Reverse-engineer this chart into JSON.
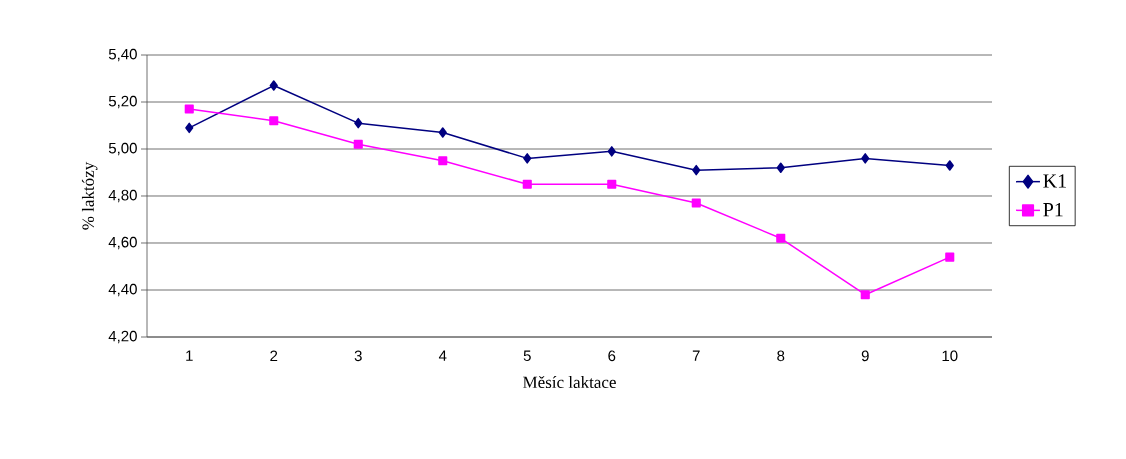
{
  "chart_data": {
    "type": "line",
    "xlabel": "Měsíc laktace",
    "ylabel": "% laktózy",
    "categories": [
      "1",
      "2",
      "3",
      "4",
      "5",
      "6",
      "7",
      "8",
      "9",
      "10"
    ],
    "series": [
      {
        "name": "K1",
        "color": "#000080",
        "marker": "diamond",
        "values": [
          5.09,
          5.27,
          5.11,
          5.07,
          4.96,
          4.99,
          4.91,
          4.92,
          4.96,
          4.93
        ]
      },
      {
        "name": "P1",
        "color": "#ff00ff",
        "marker": "square",
        "values": [
          5.17,
          5.12,
          5.02,
          4.95,
          4.85,
          4.85,
          4.77,
          4.62,
          4.38,
          4.54
        ]
      }
    ],
    "ylim": [
      4.2,
      5.4
    ],
    "yticks": [
      {
        "value": 4.2,
        "label": "4,20"
      },
      {
        "value": 4.4,
        "label": "4,40"
      },
      {
        "value": 4.6,
        "label": "4,60"
      },
      {
        "value": 4.8,
        "label": "4,80"
      },
      {
        "value": 5.0,
        "label": "5,00"
      },
      {
        "value": 5.2,
        "label": "5,20"
      },
      {
        "value": 5.4,
        "label": "5,40"
      }
    ],
    "grid": "y",
    "legend": "right",
    "line_style": "solid"
  }
}
